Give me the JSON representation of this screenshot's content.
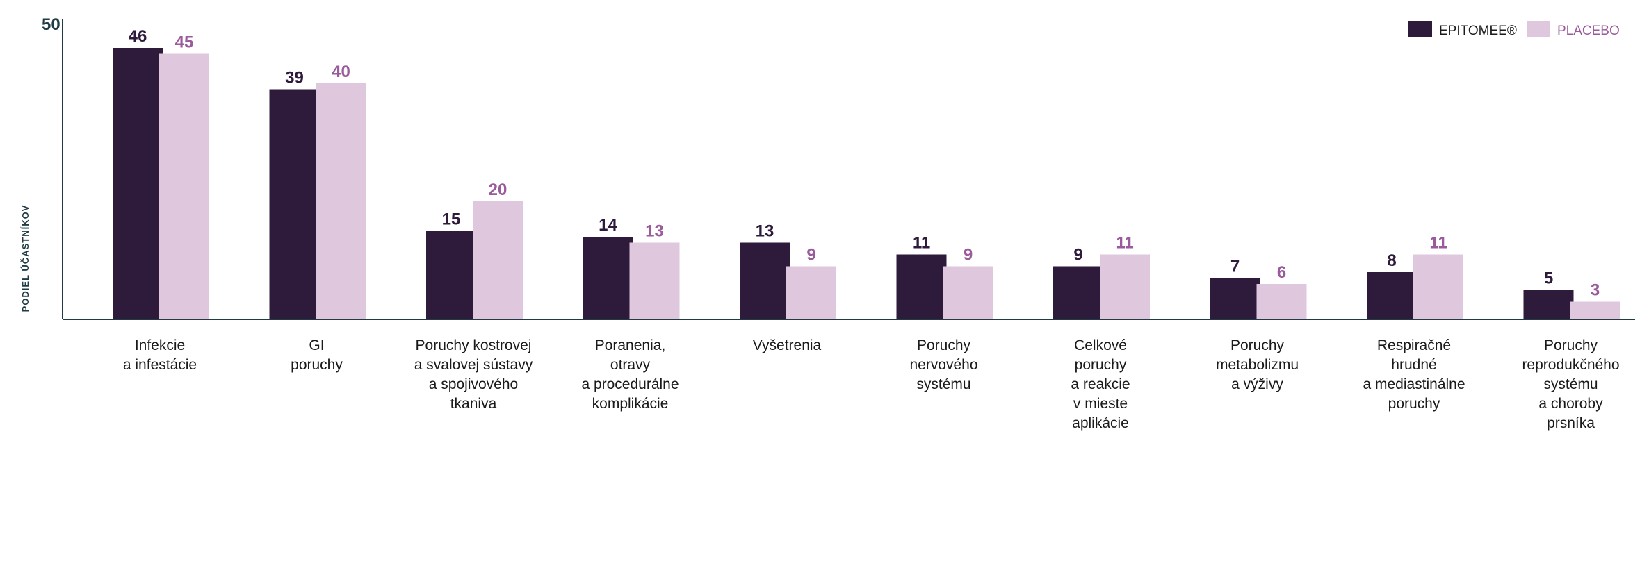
{
  "chart_data": {
    "type": "bar",
    "ylabel": "PODIEL ÚČASTNÍKOV",
    "ylim": [
      0,
      50
    ],
    "yticks": [
      50
    ],
    "grid": false,
    "legend_position": "top-right",
    "categories": [
      [
        "Infekcie",
        "a infestácie"
      ],
      [
        "GI",
        "poruchy"
      ],
      [
        "Poruchy kostrovej",
        "a svalovej sústavy",
        "a spojivového",
        "tkaniva"
      ],
      [
        "Poranenia,",
        "otravy",
        "a procedurálne",
        "komplikácie"
      ],
      [
        "Vyšetrenia"
      ],
      [
        "Poruchy",
        "nervového",
        "systému"
      ],
      [
        "Celkové",
        "poruchy",
        "a reakcie",
        "v mieste",
        "aplikácie"
      ],
      [
        "Poruchy",
        "metabolizmu",
        "a výživy"
      ],
      [
        "Respiračné",
        "hrudné",
        "a mediastinálne",
        "poruchy"
      ],
      [
        "Poruchy",
        "reprodukčného",
        "systému",
        "a choroby",
        "prsníka"
      ]
    ],
    "series": [
      {
        "name": "EPITOMEE®",
        "color": "#2e1a3b",
        "label_color": "#2e1a3b",
        "values": [
          46,
          39,
          15,
          14,
          13,
          11,
          9,
          7,
          8,
          5
        ]
      },
      {
        "name": "PLACEBO",
        "color": "#dfc8de",
        "label_color": "#9a5a9b",
        "values": [
          45,
          40,
          20,
          13,
          9,
          9,
          11,
          6,
          11,
          3
        ]
      }
    ],
    "axis_color": "#1f3b44"
  }
}
